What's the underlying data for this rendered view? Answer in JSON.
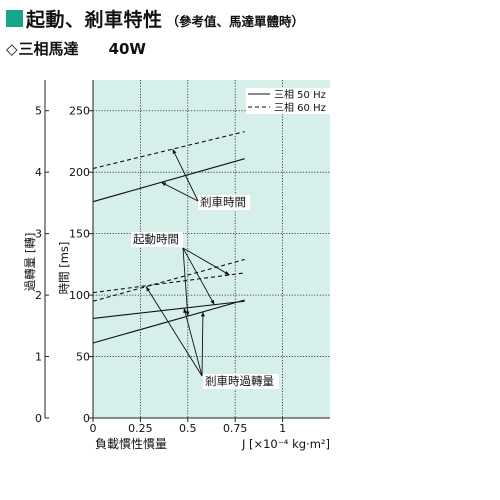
{
  "header": {
    "title": "起動、剎車特性",
    "title_note": "（參考值、馬達單體時）",
    "accent_color": "#19a58a",
    "icon": "green-square-icon"
  },
  "subheader": {
    "symbol": "◇",
    "model": "三相馬達",
    "power": "40W"
  },
  "chart_data": {
    "type": "line",
    "plot_background": "#d7efea",
    "grid": true,
    "x": [
      0,
      0.8
    ],
    "xlabel": "負載慣性慣量",
    "xunit": "J [×10⁻⁴ kg·m²]",
    "xticks": [
      "0",
      "0.25",
      "0.5",
      "0.75",
      "1"
    ],
    "xlim": [
      0,
      1.25
    ],
    "ylabel": "時間 [ms]",
    "ylim": [
      0,
      275
    ],
    "yticks": [
      "0",
      "50",
      "100",
      "150",
      "200",
      "250"
    ],
    "y2label": "過轉量 [轉]",
    "y2lim": [
      0,
      5.5
    ],
    "y2ticks": [
      "0",
      "1",
      "2",
      "3",
      "4",
      "5"
    ],
    "legend": {
      "position": "top-right",
      "entries": [
        {
          "label": "三相 50 Hz",
          "style": "solid"
        },
        {
          "label": "三相 60 Hz",
          "style": "dashed"
        }
      ]
    },
    "series": [
      {
        "group": "剎車時間",
        "style": "solid",
        "axis": "y",
        "values": [
          176,
          211
        ]
      },
      {
        "group": "剎車時間",
        "style": "dashed",
        "axis": "y",
        "values": [
          203,
          233
        ]
      },
      {
        "group": "起動時間",
        "style": "solid",
        "axis": "y",
        "values": [
          81,
          95
        ]
      },
      {
        "group": "起動時間",
        "style": "dashed",
        "axis": "y",
        "values": [
          102,
          118
        ]
      },
      {
        "group": "剎車時過轉量",
        "style": "solid",
        "axis": "y2",
        "values": [
          1.22,
          1.92
        ]
      },
      {
        "group": "剎車時過轉量",
        "style": "dashed",
        "axis": "y2",
        "values": [
          1.9,
          2.58
        ]
      }
    ],
    "annotations": [
      {
        "text": "剎車時間"
      },
      {
        "text": "起動時間"
      },
      {
        "text": "剎車時過轉量"
      }
    ]
  }
}
